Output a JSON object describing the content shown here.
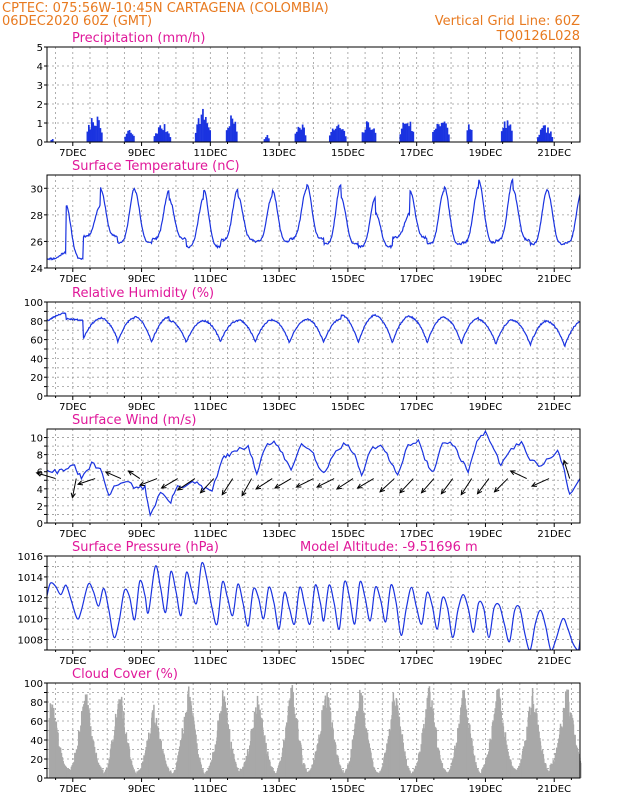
{
  "header": {
    "line1": "CPTEC:   075:56W-10:45N   CARTAGENA (COLOMBIA)",
    "line2": "06DEC2020 60Z (GMT)",
    "grid_note": "Vertical Grid Line: 60Z",
    "code": "TQ0126L028"
  },
  "colors": {
    "header": "#e87a20",
    "title": "#e0189a",
    "line": "#1a33e0",
    "cloud": "#a8a8a8",
    "wind_arrow": "#000000"
  },
  "chart_data": [
    {
      "id": "precip",
      "type": "bar",
      "title": "Precipitation (mm/h)",
      "xlim": [
        0,
        15.5
      ],
      "ylim": [
        0,
        5
      ],
      "yticks": [
        0,
        1,
        2,
        3,
        4,
        5
      ],
      "xticks": [
        0.75,
        2.75,
        4.75,
        6.75,
        8.75,
        10.75,
        12.75,
        14.75
      ],
      "xticklabels": [
        "7DEC",
        "9DEC",
        "11DEC",
        "13DEC",
        "15DEC",
        "17DEC",
        "19DEC",
        "21DEC"
      ],
      "events": [
        {
          "t": 0.1,
          "peak": 0.2,
          "dur": 0.1
        },
        {
          "t": 1.15,
          "peak": 1.5,
          "dur": 0.45
        },
        {
          "t": 2.25,
          "peak": 0.7,
          "dur": 0.3
        },
        {
          "t": 3.1,
          "peak": 1.0,
          "dur": 0.5
        },
        {
          "t": 4.3,
          "peak": 1.8,
          "dur": 0.45
        },
        {
          "t": 5.2,
          "peak": 1.5,
          "dur": 0.35
        },
        {
          "t": 6.3,
          "peak": 0.4,
          "dur": 0.15
        },
        {
          "t": 7.2,
          "peak": 1.2,
          "dur": 0.35
        },
        {
          "t": 8.2,
          "peak": 1.0,
          "dur": 0.5
        },
        {
          "t": 9.15,
          "peak": 1.2,
          "dur": 0.4
        },
        {
          "t": 10.25,
          "peak": 1.4,
          "dur": 0.4
        },
        {
          "t": 11.2,
          "peak": 1.4,
          "dur": 0.5
        },
        {
          "t": 12.2,
          "peak": 1.2,
          "dur": 0.15
        },
        {
          "t": 13.2,
          "peak": 1.3,
          "dur": 0.35
        },
        {
          "t": 14.25,
          "peak": 0.9,
          "dur": 0.45
        }
      ]
    },
    {
      "id": "temp",
      "type": "line",
      "title": "Surface Temperature (nC)",
      "xlim": [
        0,
        15.5
      ],
      "ylim": [
        24,
        31
      ],
      "yticks": [
        24,
        26,
        28,
        30
      ],
      "xticks": [
        0.75,
        2.75,
        4.75,
        6.75,
        8.75,
        10.75,
        12.75,
        14.75
      ],
      "xticklabels": [
        "7DEC",
        "9DEC",
        "11DEC",
        "13DEC",
        "15DEC",
        "17DEC",
        "19DEC",
        "21DEC"
      ],
      "cycle": {
        "phase": 0.55,
        "shape": 2.4
      },
      "daily_max": [
        25.2,
        28.7,
        30.0,
        29.8,
        29.2,
        29.9,
        29.4,
        29.9,
        30.3,
        29.3,
        28.1,
        29.8,
        30.1,
        30.6,
        29.9,
        29.8
      ],
      "daily_min": [
        24.7,
        26.4,
        25.9,
        26.2,
        25.6,
        26.1,
        26.0,
        26.2,
        25.8,
        25.6,
        26.3,
        25.8,
        25.9,
        26.1,
        25.8,
        25.9
      ]
    },
    {
      "id": "rh",
      "type": "line",
      "title": "Relative Humidity (%)",
      "xlim": [
        0,
        15.5
      ],
      "ylim": [
        0,
        100
      ],
      "yticks": [
        0,
        10,
        20,
        30,
        40,
        50,
        60,
        70,
        80,
        90,
        100
      ],
      "ytick_labels_every": 2,
      "xticks": [
        0.75,
        2.75,
        4.75,
        6.75,
        8.75,
        10.75,
        12.75,
        14.75
      ],
      "xticklabels": [
        "7DEC",
        "9DEC",
        "11DEC",
        "13DEC",
        "15DEC",
        "17DEC",
        "19DEC",
        "21DEC"
      ],
      "cycle": {
        "phase": 0.55,
        "shape": 0.42
      },
      "daily_max": [
        88,
        82,
        83,
        84,
        80,
        80,
        81,
        81,
        82,
        86,
        85,
        84,
        83,
        81,
        80,
        79
      ],
      "daily_min": [
        80,
        60,
        56,
        57,
        57,
        58,
        56,
        56,
        57,
        55,
        57,
        55,
        55,
        54,
        53,
        52
      ]
    },
    {
      "id": "wind",
      "type": "line",
      "title": "Surface Wind (m/s)",
      "xlim": [
        0,
        15.5
      ],
      "ylim": [
        0,
        11
      ],
      "yticks": [
        0,
        1,
        2,
        3,
        4,
        5,
        6,
        7,
        8,
        9,
        10
      ],
      "ytick_labels_every": 2,
      "xticks": [
        0.75,
        2.75,
        4.75,
        6.75,
        8.75,
        10.75,
        12.75,
        14.75
      ],
      "xticklabels": [
        "7DEC",
        "9DEC",
        "11DEC",
        "13DEC",
        "15DEC",
        "17DEC",
        "19DEC",
        "21DEC"
      ],
      "speed_points": [
        [
          0.0,
          6.3
        ],
        [
          0.3,
          6.0
        ],
        [
          0.55,
          6.4
        ],
        [
          0.8,
          6.6
        ],
        [
          1.0,
          5.2
        ],
        [
          1.3,
          6.9
        ],
        [
          1.55,
          6.3
        ],
        [
          1.8,
          3.2
        ],
        [
          2.0,
          4.5
        ],
        [
          2.3,
          5.0
        ],
        [
          2.6,
          4.0
        ],
        [
          2.85,
          4.2
        ],
        [
          3.0,
          0.9
        ],
        [
          3.3,
          3.6
        ],
        [
          3.6,
          2.4
        ],
        [
          3.8,
          4.5
        ],
        [
          4.0,
          4.2
        ],
        [
          4.3,
          4.8
        ],
        [
          4.55,
          4.0
        ],
        [
          4.8,
          3.8
        ],
        [
          5.1,
          7.5
        ],
        [
          5.3,
          8.0
        ],
        [
          5.6,
          8.6
        ],
        [
          5.85,
          9.0
        ],
        [
          6.1,
          5.7
        ],
        [
          6.35,
          9.0
        ],
        [
          6.6,
          9.5
        ],
        [
          6.85,
          8.0
        ],
        [
          7.1,
          6.2
        ],
        [
          7.4,
          9.4
        ],
        [
          7.7,
          8.6
        ],
        [
          7.9,
          6.4
        ],
        [
          8.1,
          6.0
        ],
        [
          8.4,
          8.6
        ],
        [
          8.7,
          9.3
        ],
        [
          8.95,
          8.0
        ],
        [
          9.15,
          5.5
        ],
        [
          9.4,
          8.5
        ],
        [
          9.7,
          9.2
        ],
        [
          9.95,
          7.5
        ],
        [
          10.2,
          5.8
        ],
        [
          10.5,
          9.1
        ],
        [
          10.8,
          9.5
        ],
        [
          11.05,
          7.0
        ],
        [
          11.25,
          5.9
        ],
        [
          11.5,
          9.5
        ],
        [
          11.8,
          9.2
        ],
        [
          12.05,
          7.3
        ],
        [
          12.25,
          6.0
        ],
        [
          12.5,
          9.7
        ],
        [
          12.75,
          10.5
        ],
        [
          13.0,
          8.5
        ],
        [
          13.2,
          6.8
        ],
        [
          13.5,
          8.6
        ],
        [
          13.8,
          9.5
        ],
        [
          14.05,
          7.5
        ],
        [
          14.3,
          6.7
        ],
        [
          14.6,
          7.5
        ],
        [
          14.85,
          8.5
        ],
        [
          15.05,
          6.0
        ],
        [
          15.2,
          3.2
        ],
        [
          15.5,
          5.2
        ]
      ],
      "arrows": [
        {
          "t": 0.25,
          "u": -1.0,
          "v": 0.3
        },
        {
          "t": 0.85,
          "u": -0.2,
          "v": -1.0
        },
        {
          "t": 1.4,
          "u": -0.9,
          "v": -0.3
        },
        {
          "t": 2.15,
          "u": -0.8,
          "v": 0.35
        },
        {
          "t": 2.7,
          "u": -0.6,
          "v": 0.4
        },
        {
          "t": 3.2,
          "u": -0.9,
          "v": -0.35
        },
        {
          "t": 3.8,
          "u": -0.85,
          "v": -0.5
        },
        {
          "t": 4.3,
          "u": -0.9,
          "v": -0.6
        },
        {
          "t": 4.85,
          "u": -0.7,
          "v": -0.75
        },
        {
          "t": 5.4,
          "u": -0.55,
          "v": -0.85
        },
        {
          "t": 5.95,
          "u": -0.5,
          "v": -0.9
        },
        {
          "t": 6.55,
          "u": -0.85,
          "v": -0.55
        },
        {
          "t": 7.1,
          "u": -0.85,
          "v": -0.5
        },
        {
          "t": 7.75,
          "u": -0.9,
          "v": -0.45
        },
        {
          "t": 8.35,
          "u": -0.9,
          "v": -0.45
        },
        {
          "t": 8.9,
          "u": -0.85,
          "v": -0.55
        },
        {
          "t": 9.5,
          "u": -0.85,
          "v": -0.5
        },
        {
          "t": 10.1,
          "u": -0.75,
          "v": -0.7
        },
        {
          "t": 10.65,
          "u": -0.7,
          "v": -0.75
        },
        {
          "t": 11.25,
          "u": -0.65,
          "v": -0.75
        },
        {
          "t": 11.8,
          "u": -0.6,
          "v": -0.8
        },
        {
          "t": 12.35,
          "u": -0.55,
          "v": -0.85
        },
        {
          "t": 12.85,
          "u": -0.6,
          "v": -0.8
        },
        {
          "t": 13.4,
          "u": -0.7,
          "v": -0.7
        },
        {
          "t": 13.95,
          "u": -0.85,
          "v": 0.4
        },
        {
          "t": 14.6,
          "u": -0.9,
          "v": -0.4
        },
        {
          "t": 15.2,
          "u": -0.3,
          "v": 0.95
        }
      ]
    },
    {
      "id": "pres",
      "type": "line",
      "title": "Surface Pressure (hPa)",
      "annotation": "Model Altitude: -9.51696 m",
      "xlim": [
        0,
        15.5
      ],
      "ylim": [
        1007,
        1016
      ],
      "yticks": [
        1007,
        1008,
        1009,
        1010,
        1011,
        1012,
        1013,
        1014,
        1015,
        1016
      ],
      "ytick_labels": [
        1008,
        1010,
        1012,
        1014,
        1016
      ],
      "xticks": [
        0.75,
        2.75,
        4.75,
        6.75,
        8.75,
        10.75,
        12.75,
        14.75
      ],
      "xticklabels": [
        "7DEC",
        "9DEC",
        "11DEC",
        "13DEC",
        "15DEC",
        "17DEC",
        "19DEC",
        "21DEC"
      ],
      "points": [
        [
          0.0,
          1012.2
        ],
        [
          0.1,
          1013.4
        ],
        [
          0.25,
          1013.1
        ],
        [
          0.4,
          1012.3
        ],
        [
          0.55,
          1013.2
        ],
        [
          0.7,
          1011.8
        ],
        [
          0.88,
          1010.0
        ],
        [
          1.0,
          1010.8
        ],
        [
          1.2,
          1013.3
        ],
        [
          1.35,
          1012.6
        ],
        [
          1.5,
          1011.2
        ],
        [
          1.65,
          1012.9
        ],
        [
          1.8,
          1010.8
        ],
        [
          1.95,
          1008.2
        ],
        [
          2.1,
          1009.8
        ],
        [
          2.25,
          1012.7
        ],
        [
          2.4,
          1012.1
        ],
        [
          2.55,
          1009.9
        ],
        [
          2.7,
          1013.6
        ],
        [
          2.85,
          1012.2
        ],
        [
          2.95,
          1010.6
        ],
        [
          3.15,
          1015.0
        ],
        [
          3.3,
          1013.0
        ],
        [
          3.45,
          1010.6
        ],
        [
          3.6,
          1014.5
        ],
        [
          3.75,
          1012.6
        ],
        [
          3.9,
          1010.3
        ],
        [
          4.05,
          1014.4
        ],
        [
          4.2,
          1012.8
        ],
        [
          4.35,
          1011.5
        ],
        [
          4.5,
          1015.3
        ],
        [
          4.65,
          1013.8
        ],
        [
          4.8,
          1011.0
        ],
        [
          4.95,
          1009.5
        ],
        [
          5.1,
          1013.5
        ],
        [
          5.25,
          1012.0
        ],
        [
          5.4,
          1010.3
        ],
        [
          5.55,
          1013.3
        ],
        [
          5.7,
          1011.5
        ],
        [
          5.85,
          1009.3
        ],
        [
          6.0,
          1012.8
        ],
        [
          6.15,
          1012.0
        ],
        [
          6.3,
          1010.0
        ],
        [
          6.45,
          1013.0
        ],
        [
          6.6,
          1011.5
        ],
        [
          6.75,
          1009.0
        ],
        [
          6.9,
          1012.5
        ],
        [
          7.05,
          1011.0
        ],
        [
          7.2,
          1009.5
        ],
        [
          7.35,
          1013.0
        ],
        [
          7.5,
          1011.2
        ],
        [
          7.65,
          1009.5
        ],
        [
          7.8,
          1013.2
        ],
        [
          7.95,
          1011.5
        ],
        [
          8.05,
          1009.8
        ],
        [
          8.2,
          1013.2
        ],
        [
          8.35,
          1011.5
        ],
        [
          8.5,
          1009.0
        ],
        [
          8.65,
          1013.5
        ],
        [
          8.8,
          1012.0
        ],
        [
          8.95,
          1009.5
        ],
        [
          9.1,
          1013.5
        ],
        [
          9.25,
          1012.0
        ],
        [
          9.4,
          1009.8
        ],
        [
          9.55,
          1013.0
        ],
        [
          9.7,
          1011.8
        ],
        [
          9.85,
          1009.7
        ],
        [
          10.0,
          1013.2
        ],
        [
          10.15,
          1011.6
        ],
        [
          10.3,
          1008.4
        ],
        [
          10.45,
          1011.0
        ],
        [
          10.6,
          1013.0
        ],
        [
          10.75,
          1011.0
        ],
        [
          10.9,
          1009.5
        ],
        [
          11.05,
          1012.5
        ],
        [
          11.2,
          1011.3
        ],
        [
          11.35,
          1009.0
        ],
        [
          11.5,
          1012.0
        ],
        [
          11.65,
          1011.0
        ],
        [
          11.8,
          1008.2
        ],
        [
          11.95,
          1010.8
        ],
        [
          12.1,
          1012.3
        ],
        [
          12.25,
          1011.0
        ],
        [
          12.4,
          1008.7
        ],
        [
          12.55,
          1011.5
        ],
        [
          12.7,
          1011.0
        ],
        [
          12.85,
          1008.2
        ],
        [
          13.0,
          1011.0
        ],
        [
          13.15,
          1011.3
        ],
        [
          13.3,
          1009.5
        ],
        [
          13.45,
          1007.8
        ],
        [
          13.6,
          1010.8
        ],
        [
          13.75,
          1011.0
        ],
        [
          13.9,
          1008.5
        ],
        [
          14.05,
          1007.0
        ],
        [
          14.2,
          1009.5
        ],
        [
          14.35,
          1010.8
        ],
        [
          14.5,
          1009.3
        ],
        [
          14.65,
          1007.0
        ],
        [
          14.8,
          1008.0
        ],
        [
          15.0,
          1010.0
        ],
        [
          15.15,
          1009.0
        ],
        [
          15.3,
          1007.6
        ],
        [
          15.45,
          1007.0
        ],
        [
          15.5,
          1008.0
        ]
      ]
    },
    {
      "id": "cloud",
      "type": "area",
      "title": "Cloud Cover (%)",
      "xlim": [
        0,
        15.5
      ],
      "ylim": [
        0,
        100
      ],
      "yticks": [
        0,
        10,
        20,
        30,
        40,
        50,
        60,
        70,
        80,
        90,
        100
      ],
      "ytick_labels_every": 2,
      "xticks": [
        0.75,
        2.75,
        4.75,
        6.75,
        8.75,
        10.75,
        12.75,
        14.75
      ],
      "xticklabels": [
        "7DEC",
        "9DEC",
        "11DEC",
        "13DEC",
        "15DEC",
        "17DEC",
        "19DEC",
        "21DEC"
      ],
      "cycle": {
        "phase": 0.1
      },
      "daily_peak": [
        90,
        95,
        100,
        80,
        100,
        95,
        90,
        100,
        100,
        100,
        100,
        100,
        100,
        100,
        95,
        100
      ],
      "daily_low": [
        10,
        10,
        5,
        8,
        5,
        8,
        10,
        6,
        10,
        6,
        5,
        8,
        5,
        10,
        8,
        15
      ]
    }
  ]
}
